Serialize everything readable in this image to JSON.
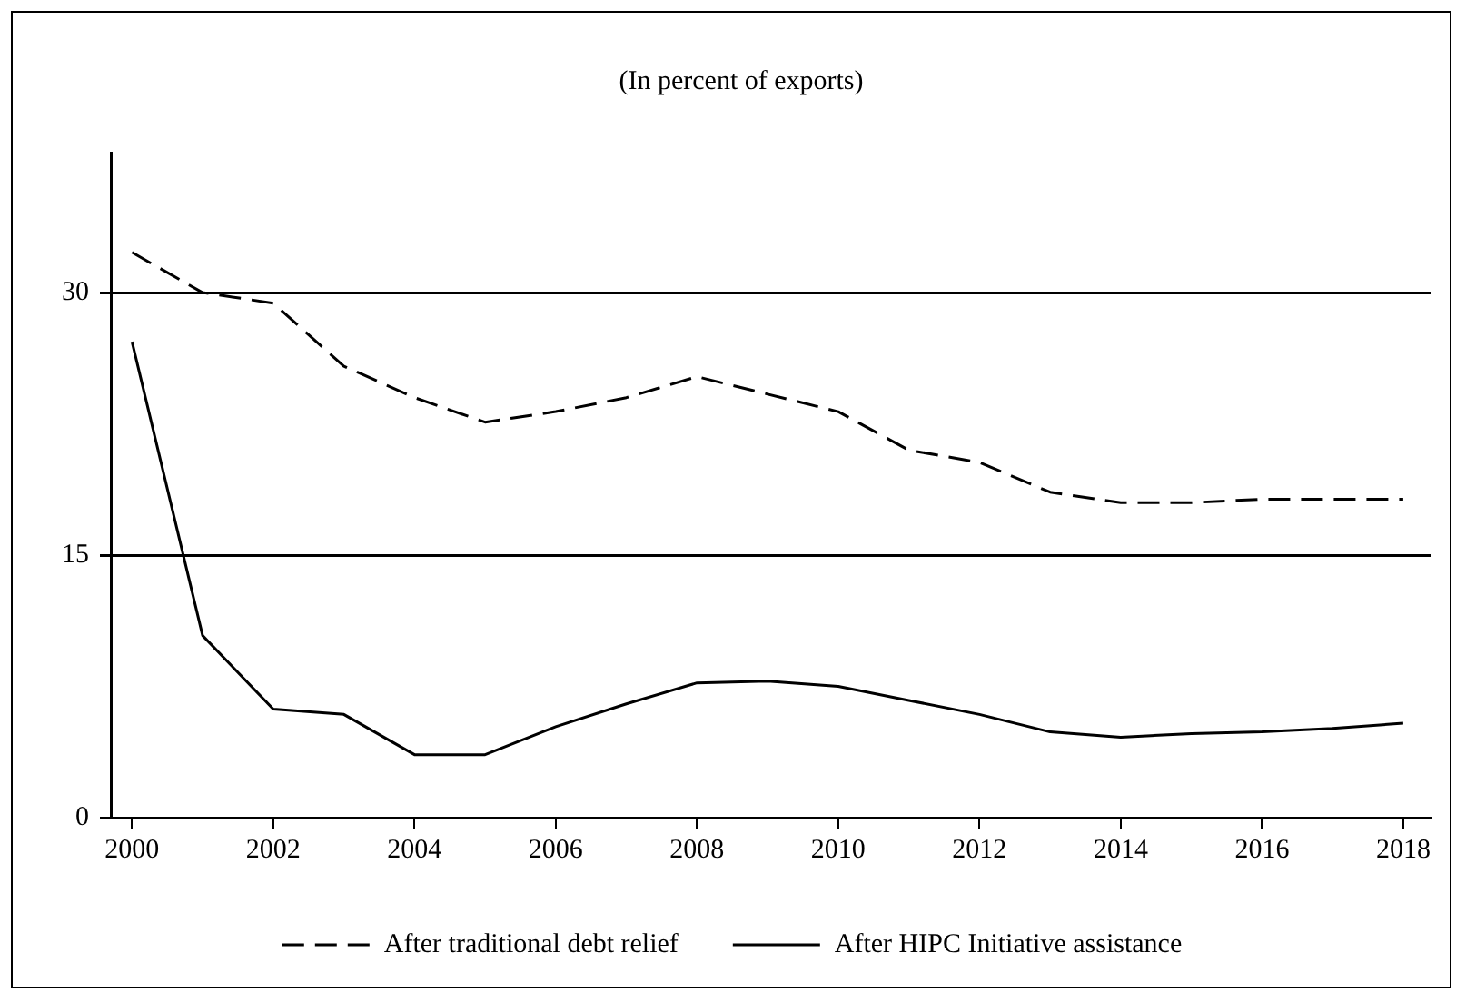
{
  "chart_data": {
    "type": "line",
    "title": "(In percent of exports)",
    "x": [
      2000,
      2001,
      2002,
      2003,
      2004,
      2005,
      2006,
      2007,
      2008,
      2009,
      2010,
      2011,
      2012,
      2013,
      2014,
      2015,
      2016,
      2017,
      2018
    ],
    "series": [
      {
        "name": "After traditional debt relief",
        "color": "#000000",
        "line_style": "dashed",
        "values": [
          32.3,
          30,
          29.4,
          25.8,
          24,
          22.6,
          23.2,
          24,
          25.2,
          24.2,
          23.2,
          21,
          20.3,
          18.6,
          18,
          18,
          18.2,
          18.2,
          18.2
        ]
      },
      {
        "name": "After HIPC Initiative assistance",
        "color": "#000000",
        "line_style": "solid",
        "values": [
          27.2,
          10.4,
          6.2,
          5.9,
          3.6,
          3.6,
          5.2,
          6.5,
          7.7,
          7.8,
          7.5,
          6.7,
          5.9,
          4.9,
          4.6,
          4.8,
          4.9,
          5.1,
          5.4
        ]
      }
    ],
    "xlim": [
      1999.7,
      2018.4
    ],
    "xticks": [
      2000,
      2002,
      2004,
      2006,
      2008,
      2010,
      2012,
      2014,
      2016,
      2018
    ],
    "ylim": [
      0,
      38
    ],
    "yticks": [
      0,
      15,
      30
    ],
    "grid": "y",
    "legend": "bottom",
    "marker": "none"
  }
}
